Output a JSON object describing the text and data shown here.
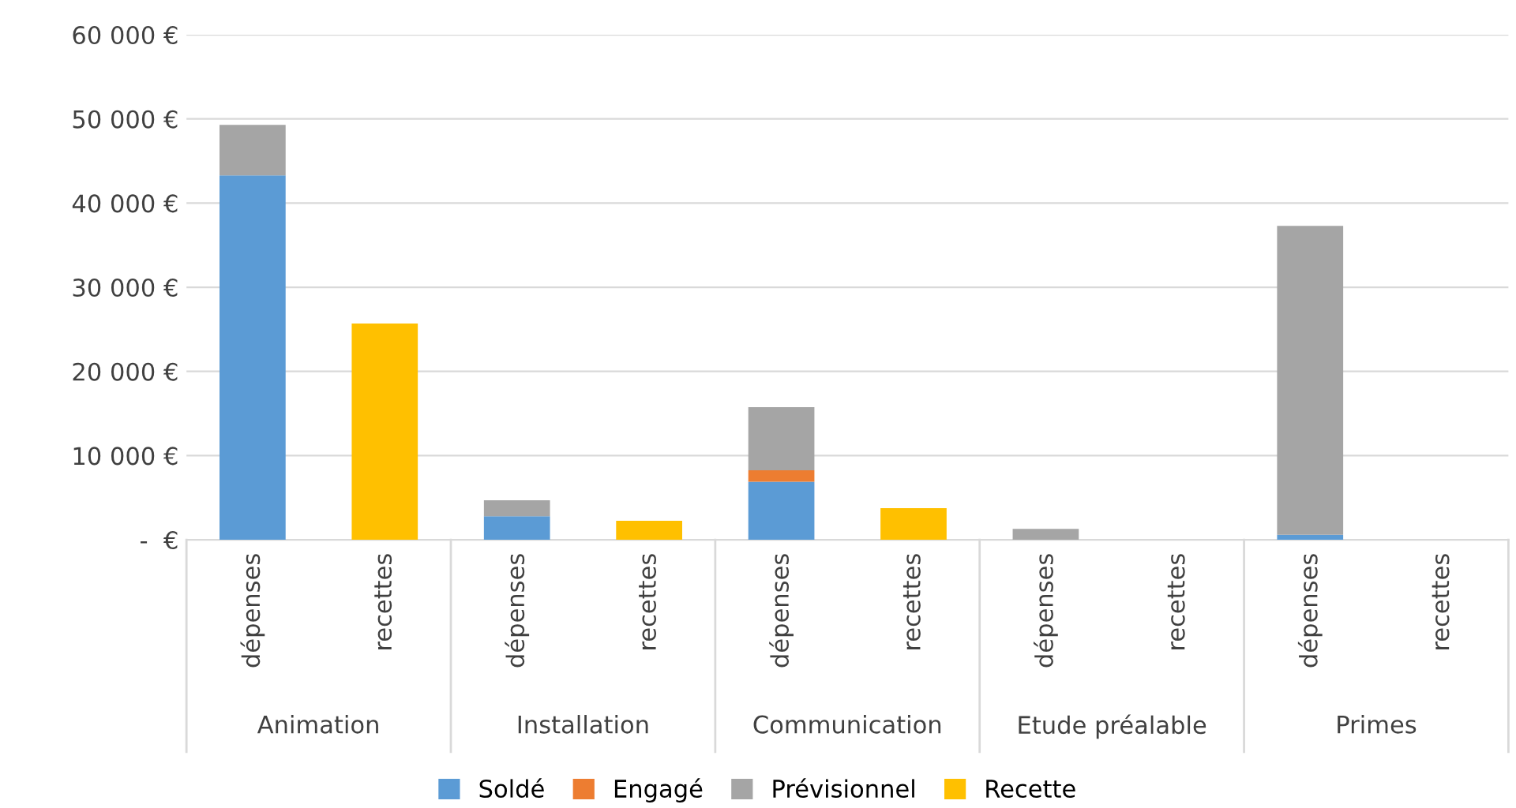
{
  "chart_data": {
    "type": "bar",
    "stacked": true,
    "categories": [
      "dépenses",
      "recettes",
      "dépenses",
      "recettes",
      "dépenses",
      "recettes",
      "dépenses",
      "recettes",
      "dépenses",
      "recettes"
    ],
    "annotations": [
      "Animation",
      "Installation",
      "Communication",
      "Etude préalable",
      "Primes"
    ],
    "series": [
      {
        "name": "Soldé",
        "color": "#5b9bd5",
        "values": [
          43300,
          null,
          2800,
          null,
          6900,
          null,
          null,
          null,
          600,
          null
        ]
      },
      {
        "name": "Engagé",
        "color": "#ed7d31",
        "values": [
          null,
          null,
          null,
          null,
          1350,
          null,
          null,
          null,
          null,
          null
        ]
      },
      {
        "name": "Prévisionnel",
        "color": "#a5a5a5",
        "values": [
          6000,
          null,
          1900,
          null,
          7500,
          null,
          1300,
          null,
          36700,
          null
        ]
      },
      {
        "name": "Recette",
        "color": "#ffc000",
        "values": [
          null,
          25700,
          null,
          2250,
          null,
          3750,
          null,
          0,
          null,
          0
        ]
      }
    ],
    "ylim": [
      0,
      60000
    ],
    "yticks": [
      {
        "value": 0,
        "label": "-  €"
      },
      {
        "value": 10000,
        "label": "10 000 €"
      },
      {
        "value": 20000,
        "label": "20 000 €"
      },
      {
        "value": 30000,
        "label": "30 000 €"
      },
      {
        "value": 40000,
        "label": "40 000 €"
      },
      {
        "value": 50000,
        "label": "50 000 €"
      },
      {
        "value": 60000,
        "label": "60 000 €"
      }
    ],
    "grid": "y",
    "legend": "bottom"
  }
}
